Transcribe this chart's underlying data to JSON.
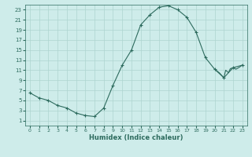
{
  "x": [
    0,
    1,
    2,
    3,
    4,
    5,
    6,
    7,
    8,
    9,
    10,
    11,
    12,
    13,
    14,
    15,
    16,
    17,
    18,
    19,
    20,
    21,
    22,
    23
  ],
  "y": [
    6.5,
    5.5,
    5.0,
    4.0,
    3.5,
    2.5,
    2.0,
    1.8,
    3.5,
    8.0,
    12.0,
    15.0,
    20.0,
    22.0,
    23.5,
    23.8,
    23.0,
    21.5,
    18.5,
    13.5,
    11.2,
    9.5,
    11.5,
    12.0
  ],
  "x_wiggle": [
    20.0,
    20.5,
    21.0,
    21.2,
    21.5,
    21.7,
    22.0,
    22.3,
    22.6,
    23.0
  ],
  "y_wiggle": [
    11.2,
    10.5,
    9.5,
    11.0,
    10.5,
    11.3,
    11.5,
    11.2,
    11.5,
    12.0
  ],
  "bg_color": "#ceecea",
  "grid_color": "#aed4d0",
  "line_color": "#2d6b5e",
  "marker": "+",
  "xlabel": "Humidex (Indice chaleur)",
  "xlim": [
    -0.5,
    23.5
  ],
  "ylim": [
    0,
    24
  ],
  "yticks": [
    1,
    3,
    5,
    7,
    9,
    11,
    13,
    15,
    17,
    19,
    21,
    23
  ],
  "xticks": [
    0,
    1,
    2,
    3,
    4,
    5,
    6,
    7,
    8,
    9,
    10,
    11,
    12,
    13,
    14,
    15,
    16,
    17,
    18,
    19,
    20,
    21,
    22,
    23
  ]
}
